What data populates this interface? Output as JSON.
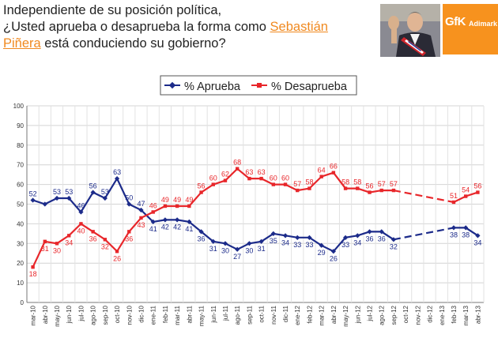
{
  "header": {
    "line1": "Independiente de su posición política,",
    "line2_pre": "¿Usted aprueba o desaprueba la forma como ",
    "line2_link": "Sebastián",
    "line3_link": "Piñera",
    "line3_post": " está conduciendo su gobierno?"
  },
  "logo": {
    "gfk": "GfK",
    "adimark": "Adimark"
  },
  "colors": {
    "aprueba": "#1c2b8a",
    "desaprueba": "#e8262a",
    "accent": "#f0891f"
  },
  "chart_data": {
    "type": "line",
    "categories": [
      "mar-10",
      "abr-10",
      "may-10",
      "jun-10",
      "jul-10",
      "ago-10",
      "sep-10",
      "oct-10",
      "nov-10",
      "dic-10",
      "ene-11",
      "feb-11",
      "mar-11",
      "abr-11",
      "may-11",
      "jun-11",
      "jul-11",
      "ago-11",
      "sep-11",
      "oct-11",
      "nov-11",
      "dic-11",
      "ene-12",
      "feb-12",
      "mar-12",
      "abr-12",
      "may-12",
      "jun-12",
      "jul-12",
      "ago-12",
      "sep-12",
      "oct-12",
      "nov-12",
      "dic-12",
      "ene-13",
      "feb-13",
      "mar-13",
      "abr-13"
    ],
    "ylim": [
      0,
      100
    ],
    "yticks": [
      0,
      10,
      20,
      30,
      40,
      50,
      60,
      70,
      80,
      90,
      100
    ],
    "grid": true,
    "legend_position": "top-center",
    "series": [
      {
        "name": "% Aprueba",
        "values": [
          52,
          50,
          53,
          53,
          46,
          56,
          53,
          63,
          50,
          47,
          41,
          42,
          42,
          41,
          36,
          31,
          30,
          27,
          30,
          31,
          35,
          34,
          33,
          33,
          29,
          26,
          33,
          34,
          36,
          36,
          32,
          null,
          null,
          null,
          null,
          38,
          38,
          34
        ],
        "labels": [
          "52",
          null,
          "53",
          "53",
          "46",
          "56",
          "53",
          "63",
          "50",
          "47",
          "41",
          "42",
          "42",
          "41",
          "36",
          "31",
          "30",
          "27",
          "30",
          "31",
          "35",
          "34",
          "33",
          "33",
          "29",
          "26",
          "33",
          "34",
          "36",
          "36",
          "32",
          null,
          null,
          null,
          null,
          "38",
          "38",
          "34"
        ]
      },
      {
        "name": "% Desaprueba",
        "values": [
          18,
          31,
          30,
          34,
          40,
          36,
          32,
          26,
          36,
          43,
          46,
          49,
          49,
          49,
          56,
          60,
          62,
          68,
          63,
          63,
          60,
          60,
          57,
          58,
          64,
          66,
          58,
          58,
          56,
          57,
          57,
          null,
          null,
          null,
          null,
          51,
          54,
          56
        ],
        "labels": [
          "18",
          "31",
          "30",
          "34",
          "40",
          "36",
          "32",
          "26",
          "36",
          "43",
          "46",
          "49",
          "49",
          "49",
          "56",
          "60",
          "62",
          "68",
          "63",
          "63",
          "60",
          "60",
          "57",
          "58",
          "64",
          "66",
          "58",
          "58",
          "56",
          "57",
          "57",
          null,
          null,
          null,
          null,
          "51",
          "54",
          "56"
        ]
      }
    ]
  }
}
